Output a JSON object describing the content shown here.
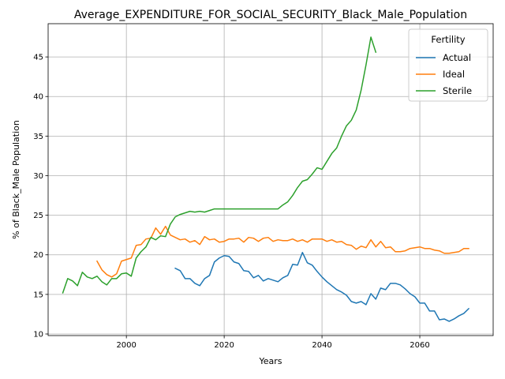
{
  "chart_data": {
    "type": "line",
    "title": "Average_EXPENDITURE_FOR_SOCIAL_SECURITY_Black_Male_Population",
    "xlabel": "Years",
    "ylabel": "% of Black_Male Population",
    "xlim": [
      1984,
      2075
    ],
    "ylim": [
      9.8,
      49.2
    ],
    "xticks": [
      2000,
      2020,
      2040,
      2060
    ],
    "yticks": [
      10,
      15,
      20,
      25,
      30,
      35,
      40,
      45
    ],
    "grid": true,
    "legend": {
      "title": "Fertility",
      "position": "top-right"
    },
    "series": [
      {
        "name": "Actual",
        "color": "#1f77b4",
        "x": [
          2010,
          2011,
          2012,
          2013,
          2014,
          2015,
          2016,
          2017,
          2018,
          2019,
          2020,
          2021,
          2022,
          2023,
          2024,
          2025,
          2026,
          2027,
          2028,
          2029,
          2030,
          2031,
          2032,
          2033,
          2034,
          2035,
          2036,
          2037,
          2038,
          2039,
          2040,
          2041,
          2042,
          2043,
          2044,
          2045,
          2046,
          2047,
          2048,
          2049,
          2050,
          2051,
          2052,
          2053,
          2054,
          2055,
          2056,
          2057,
          2058,
          2059,
          2060,
          2061,
          2062,
          2063,
          2064,
          2065,
          2066,
          2067,
          2068,
          2069,
          2070
        ],
        "values": [
          18.3,
          18.0,
          17.0,
          17.0,
          16.4,
          16.1,
          17.0,
          17.4,
          19.1,
          19.6,
          19.9,
          19.8,
          19.1,
          18.9,
          18.0,
          17.9,
          17.1,
          17.4,
          16.7,
          17.0,
          16.8,
          16.6,
          17.1,
          17.4,
          18.8,
          18.7,
          20.3,
          19.0,
          18.7,
          17.9,
          17.2,
          16.6,
          16.1,
          15.6,
          15.3,
          14.9,
          14.1,
          13.9,
          14.1,
          13.7,
          15.1,
          14.4,
          15.8,
          15.6,
          16.4,
          16.4,
          16.2,
          15.7,
          15.1,
          14.7,
          13.9,
          13.9,
          12.9,
          12.9,
          11.8,
          11.9,
          11.6,
          11.9,
          12.3,
          12.6,
          13.2
        ]
      },
      {
        "name": "Ideal",
        "color": "#ff7f0e",
        "x": [
          1994,
          1995,
          1996,
          1997,
          1998,
          1999,
          2000,
          2001,
          2002,
          2003,
          2004,
          2005,
          2006,
          2007,
          2008,
          2009,
          2010,
          2011,
          2012,
          2013,
          2014,
          2015,
          2016,
          2017,
          2018,
          2019,
          2020,
          2021,
          2022,
          2023,
          2024,
          2025,
          2026,
          2027,
          2028,
          2029,
          2030,
          2031,
          2032,
          2033,
          2034,
          2035,
          2036,
          2037,
          2038,
          2039,
          2040,
          2041,
          2042,
          2043,
          2044,
          2045,
          2046,
          2047,
          2048,
          2049,
          2050,
          2051,
          2052,
          2053,
          2054,
          2055,
          2056,
          2057,
          2058,
          2059,
          2060,
          2061,
          2062,
          2063,
          2064,
          2065,
          2066,
          2067,
          2068,
          2069,
          2070
        ],
        "values": [
          19.2,
          18.1,
          17.5,
          17.2,
          17.6,
          19.2,
          19.4,
          19.6,
          21.2,
          21.3,
          22.0,
          22.1,
          23.4,
          22.6,
          23.6,
          22.5,
          22.2,
          21.9,
          22.0,
          21.6,
          21.8,
          21.3,
          22.3,
          21.9,
          22.0,
          21.6,
          21.7,
          22.0,
          22.0,
          22.1,
          21.6,
          22.2,
          22.1,
          21.7,
          22.1,
          22.2,
          21.7,
          21.9,
          21.8,
          21.8,
          22.0,
          21.7,
          21.9,
          21.6,
          22.0,
          22.0,
          22.0,
          21.7,
          21.9,
          21.6,
          21.7,
          21.3,
          21.2,
          20.7,
          21.1,
          20.9,
          21.9,
          21.0,
          21.7,
          20.9,
          21.0,
          20.4,
          20.4,
          20.5,
          20.8,
          20.9,
          21.0,
          20.8,
          20.8,
          20.6,
          20.5,
          20.2,
          20.2,
          20.3,
          20.4,
          20.8,
          20.8
        ]
      },
      {
        "name": "Sterile",
        "color": "#2ca02c",
        "x": [
          1987,
          1988,
          1989,
          1990,
          1991,
          1992,
          1993,
          1994,
          1995,
          1996,
          1997,
          1998,
          1999,
          2000,
          2001,
          2002,
          2003,
          2004,
          2005,
          2006,
          2007,
          2008,
          2009,
          2010,
          2011,
          2012,
          2013,
          2014,
          2015,
          2016,
          2017,
          2018,
          2019,
          2020,
          2021,
          2022,
          2023,
          2024,
          2025,
          2026,
          2027,
          2028,
          2029,
          2030,
          2031,
          2032,
          2033,
          2034,
          2035,
          2036,
          2037,
          2038,
          2039,
          2040,
          2041,
          2042,
          2043,
          2044,
          2045,
          2046,
          2047,
          2048,
          2049,
          2050,
          2051
        ],
        "values": [
          15.2,
          17.0,
          16.7,
          16.1,
          17.8,
          17.2,
          17.0,
          17.3,
          16.6,
          16.2,
          17.0,
          17.0,
          17.6,
          17.7,
          17.3,
          19.6,
          20.4,
          21.0,
          22.2,
          21.9,
          22.4,
          22.3,
          23.9,
          24.8,
          25.1,
          25.3,
          25.5,
          25.4,
          25.5,
          25.4,
          25.6,
          25.8,
          25.8,
          25.8,
          25.8,
          25.8,
          25.8,
          25.8,
          25.8,
          25.8,
          25.8,
          25.8,
          25.8,
          25.8,
          25.8,
          26.3,
          26.7,
          27.5,
          28.5,
          29.3,
          29.5,
          30.2,
          31.0,
          30.8,
          31.8,
          32.8,
          33.5,
          35.0,
          36.3,
          37.0,
          38.3,
          40.8,
          44.0,
          47.5,
          45.6
        ]
      }
    ]
  }
}
